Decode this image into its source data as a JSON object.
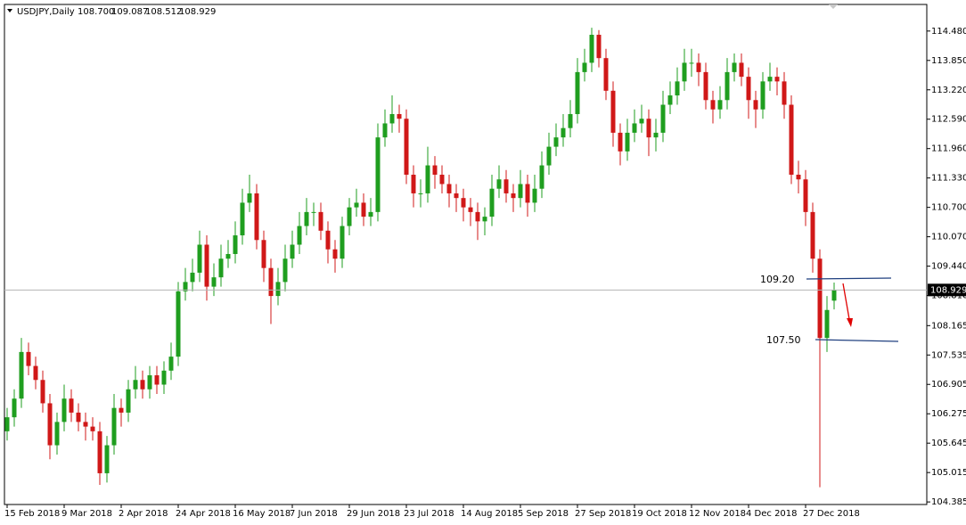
{
  "chart_data": {
    "type": "candlestick",
    "title": "USDJPY,Daily",
    "ohlc_labels": [
      "108.700",
      "109.087",
      "108.512",
      "108.929"
    ],
    "annotations": [
      "109.20",
      "107.50"
    ],
    "up_color": "#1f9e1f",
    "down_color": "#d01818",
    "xlim": [
      -0.375,
      129
    ],
    "xticks": [
      {
        "value": 0,
        "label": "15 Feb 2018"
      },
      {
        "value": 8,
        "label": "9 Mar 2018"
      },
      {
        "value": 16,
        "label": "2 Apr 2018"
      },
      {
        "value": 24,
        "label": "24 Apr 2018"
      },
      {
        "value": 32,
        "label": "16 May 2018"
      },
      {
        "value": 40,
        "label": "7 Jun 2018"
      },
      {
        "value": 48,
        "label": "29 Jun 2018"
      },
      {
        "value": 56,
        "label": "23 Jul 2018"
      },
      {
        "value": 64,
        "label": "14 Aug 2018"
      },
      {
        "value": 72,
        "label": "5 Sep 2018"
      },
      {
        "value": 80,
        "label": "27 Sep 2018"
      },
      {
        "value": 88,
        "label": "19 Oct 2018"
      },
      {
        "value": 96,
        "label": "12 Nov 2018"
      },
      {
        "value": 104,
        "label": "4 Dec 2018"
      },
      {
        "value": 112,
        "label": "27 Dec 2018"
      }
    ],
    "ylim": [
      104.33,
      115.05
    ],
    "yticks": [
      {
        "value": 114.48,
        "label": "114.480"
      },
      {
        "value": 113.85,
        "label": "113.850"
      },
      {
        "value": 113.22,
        "label": "113.220"
      },
      {
        "value": 112.59,
        "label": "112.590"
      },
      {
        "value": 111.96,
        "label": "111.960"
      },
      {
        "value": 111.33,
        "label": "111.330"
      },
      {
        "value": 110.7,
        "label": "110.700"
      },
      {
        "value": 110.07,
        "label": "110.070"
      },
      {
        "value": 109.44,
        "label": "109.440"
      },
      {
        "value": 108.81,
        "label": "108.810"
      },
      {
        "value": 108.165,
        "label": "108.165"
      },
      {
        "value": 107.535,
        "label": "107.535"
      },
      {
        "value": 106.905,
        "label": "106.905"
      },
      {
        "value": 106.275,
        "label": "106.275"
      },
      {
        "value": 105.645,
        "label": "105.645"
      },
      {
        "value": 105.015,
        "label": "105.015"
      },
      {
        "value": 104.385,
        "label": "104.385"
      }
    ],
    "open": [
      105.9,
      106.2,
      106.6,
      107.6,
      107.3,
      107.0,
      106.5,
      105.6,
      106.1,
      106.6,
      106.3,
      106.1,
      106.0,
      105.9,
      105.0,
      105.6,
      106.4,
      106.3,
      106.8,
      107.0,
      106.8,
      107.1,
      106.9,
      107.2,
      107.5,
      108.9,
      109.1,
      109.3,
      109.9,
      109.0,
      109.2,
      109.6,
      109.7,
      110.1,
      110.8,
      111.0,
      110.0,
      109.4,
      108.8,
      109.1,
      109.6,
      109.9,
      110.3,
      110.6,
      110.6,
      110.2,
      109.8,
      109.6,
      110.3,
      110.7,
      110.8,
      110.5,
      110.6,
      112.2,
      112.5,
      112.7,
      112.6,
      111.4,
      111.0,
      111.0,
      111.6,
      111.4,
      111.2,
      111.0,
      110.9,
      110.7,
      110.6,
      110.4,
      110.5,
      111.1,
      111.3,
      111.0,
      110.9,
      111.2,
      110.8,
      111.1,
      111.6,
      112.0,
      112.2,
      112.4,
      112.7,
      113.6,
      113.8,
      114.4,
      113.9,
      113.2,
      112.3,
      111.9,
      112.3,
      112.5,
      112.6,
      112.2,
      112.3,
      112.9,
      113.1,
      113.4,
      113.8,
      113.8,
      113.6,
      113.0,
      112.8,
      113.0,
      113.6,
      113.8,
      113.5,
      113.0,
      112.8,
      113.4,
      113.5,
      113.4,
      112.9,
      111.4,
      111.3,
      110.6,
      109.6,
      107.9,
      108.7
    ],
    "high": [
      106.4,
      106.8,
      107.9,
      107.8,
      107.5,
      107.2,
      106.7,
      106.3,
      106.9,
      106.8,
      106.5,
      106.3,
      106.2,
      106.1,
      105.8,
      106.7,
      106.6,
      107.0,
      107.3,
      107.2,
      107.3,
      107.3,
      107.4,
      107.8,
      109.1,
      109.4,
      109.6,
      110.2,
      110.1,
      109.5,
      109.9,
      110.0,
      110.4,
      111.1,
      111.4,
      111.2,
      110.2,
      109.6,
      109.4,
      109.9,
      110.2,
      110.6,
      110.9,
      110.8,
      110.8,
      110.4,
      110.0,
      110.5,
      110.9,
      111.1,
      111.0,
      110.9,
      112.5,
      112.8,
      113.1,
      112.9,
      112.8,
      111.6,
      111.3,
      112.0,
      111.8,
      111.6,
      111.4,
      111.2,
      111.1,
      110.9,
      110.8,
      110.7,
      111.4,
      111.6,
      111.5,
      111.2,
      111.5,
      111.4,
      111.4,
      111.9,
      112.3,
      112.5,
      112.7,
      113.0,
      113.9,
      114.1,
      114.55,
      114.5,
      114.1,
      113.4,
      112.5,
      112.6,
      112.8,
      112.9,
      112.8,
      112.6,
      113.2,
      113.4,
      113.7,
      114.1,
      114.1,
      114.0,
      113.8,
      113.2,
      113.3,
      113.9,
      114.0,
      114.0,
      113.7,
      113.2,
      113.6,
      113.8,
      113.7,
      113.6,
      113.1,
      111.7,
      111.5,
      110.8,
      109.8,
      108.8,
      109.087
    ],
    "low": [
      105.7,
      106.0,
      106.4,
      107.1,
      106.8,
      106.3,
      105.3,
      105.4,
      105.9,
      106.1,
      105.9,
      105.7,
      105.7,
      104.75,
      104.8,
      105.4,
      106.0,
      106.1,
      106.6,
      106.6,
      106.6,
      106.7,
      106.7,
      107.0,
      107.3,
      108.7,
      108.9,
      109.1,
      108.7,
      108.8,
      109.0,
      109.4,
      109.5,
      109.9,
      110.6,
      109.8,
      109.1,
      108.2,
      108.6,
      108.9,
      109.4,
      109.7,
      110.1,
      110.3,
      110.0,
      109.5,
      109.3,
      109.4,
      110.1,
      110.5,
      110.3,
      110.3,
      110.4,
      112.0,
      112.3,
      112.3,
      111.2,
      110.7,
      110.7,
      110.8,
      111.1,
      111.0,
      110.7,
      110.6,
      110.4,
      110.3,
      110.0,
      110.1,
      110.3,
      110.9,
      110.8,
      110.6,
      110.7,
      110.5,
      110.6,
      110.9,
      111.4,
      111.8,
      112.0,
      112.2,
      112.5,
      113.4,
      113.6,
      113.7,
      113.0,
      112.0,
      111.6,
      111.7,
      112.1,
      112.3,
      111.8,
      111.9,
      112.1,
      112.7,
      112.9,
      113.2,
      113.5,
      113.3,
      112.8,
      112.5,
      112.6,
      112.8,
      113.4,
      113.3,
      112.6,
      112.4,
      112.6,
      113.2,
      113.1,
      112.6,
      111.2,
      111.0,
      110.3,
      109.3,
      104.7,
      107.6,
      108.512
    ],
    "close": [
      106.2,
      106.6,
      107.6,
      107.3,
      107.0,
      106.5,
      105.6,
      106.1,
      106.6,
      106.3,
      106.1,
      106.0,
      105.9,
      105.0,
      105.6,
      106.4,
      106.3,
      106.8,
      107.0,
      106.8,
      107.1,
      106.9,
      107.2,
      107.5,
      108.9,
      109.1,
      109.3,
      109.9,
      109.0,
      109.2,
      109.6,
      109.7,
      110.1,
      110.8,
      111.0,
      110.0,
      109.4,
      108.8,
      109.1,
      109.6,
      109.9,
      110.3,
      110.6,
      110.6,
      110.2,
      109.8,
      109.6,
      110.3,
      110.7,
      110.8,
      110.5,
      110.6,
      112.2,
      112.5,
      112.7,
      112.6,
      111.4,
      111.0,
      111.0,
      111.6,
      111.4,
      111.2,
      111.0,
      110.9,
      110.7,
      110.6,
      110.4,
      110.5,
      111.1,
      111.3,
      111.0,
      110.9,
      111.2,
      110.8,
      111.1,
      111.6,
      112.0,
      112.2,
      112.4,
      112.7,
      113.6,
      113.8,
      114.4,
      113.9,
      113.2,
      112.3,
      111.9,
      112.3,
      112.5,
      112.6,
      112.2,
      112.3,
      112.9,
      113.1,
      113.4,
      113.8,
      113.8,
      113.6,
      113.0,
      112.8,
      113.0,
      113.6,
      113.8,
      113.5,
      113.0,
      112.8,
      113.4,
      113.5,
      113.4,
      112.9,
      111.4,
      111.3,
      110.6,
      109.6,
      107.9,
      108.5,
      108.929
    ]
  }
}
